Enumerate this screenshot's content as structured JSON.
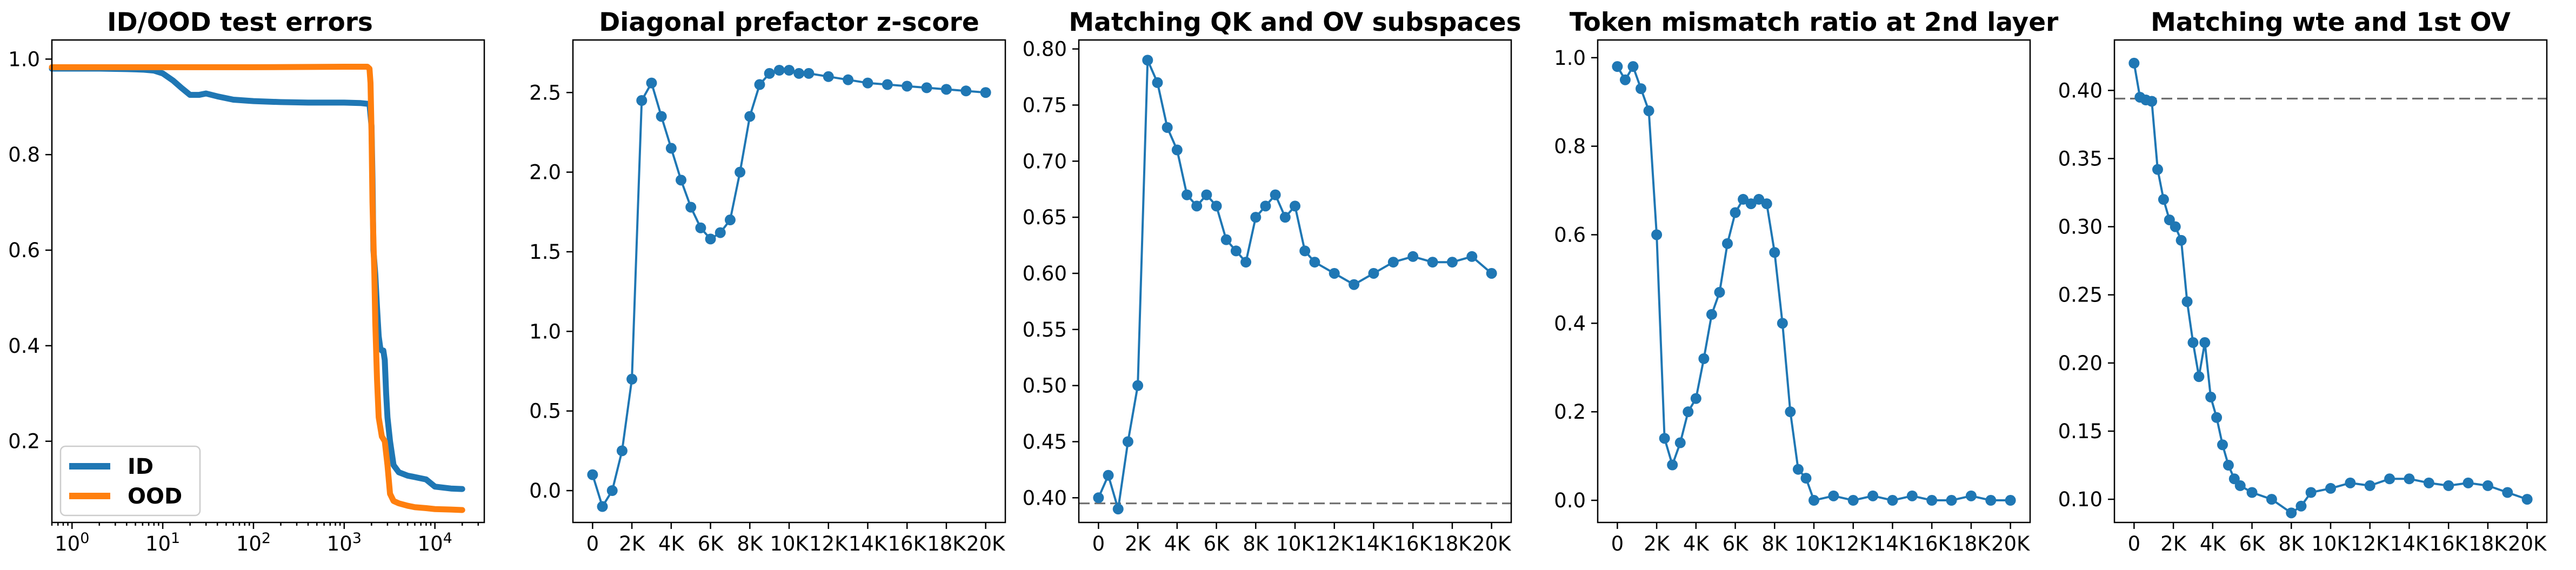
{
  "palette": {
    "id": "#1f77b4",
    "ood": "#ff7f0e",
    "reference": "#6e6e6e"
  },
  "chart_data": [
    {
      "type": "line",
      "title": "ID/OOD test errors",
      "xscale": "log",
      "xlim": [
        0.6,
        35000
      ],
      "ylim": [
        0.03,
        1.04
      ],
      "xticks": [
        {
          "value": 1,
          "label": "10",
          "exp": "0"
        },
        {
          "value": 10,
          "label": "10",
          "exp": "1"
        },
        {
          "value": 100,
          "label": "10",
          "exp": "2"
        },
        {
          "value": 1000,
          "label": "10",
          "exp": "3"
        },
        {
          "value": 10000,
          "label": "10",
          "exp": "4"
        }
      ],
      "yticks": [
        0.2,
        0.4,
        0.6,
        0.8,
        1.0
      ],
      "legend_position": "lower-left",
      "series": [
        {
          "name": "ID",
          "color_key": "id",
          "markers": false,
          "x": [
            0.6,
            2,
            4,
            6,
            8,
            10,
            13,
            16,
            20,
            25,
            30,
            40,
            60,
            100,
            200,
            400,
            700,
            1000,
            1500,
            1900,
            2000,
            2050,
            2100,
            2200,
            2300,
            2400,
            2500,
            2600,
            2700,
            2800,
            2900,
            3000,
            3200,
            3500,
            4000,
            5000,
            6000,
            8000,
            10000,
            15000,
            20000
          ],
          "y": [
            0.98,
            0.98,
            0.979,
            0.978,
            0.976,
            0.97,
            0.955,
            0.94,
            0.925,
            0.925,
            0.928,
            0.922,
            0.915,
            0.912,
            0.91,
            0.909,
            0.909,
            0.909,
            0.908,
            0.906,
            0.86,
            0.75,
            0.6,
            0.55,
            0.48,
            0.42,
            0.395,
            0.39,
            0.39,
            0.37,
            0.3,
            0.25,
            0.2,
            0.15,
            0.135,
            0.128,
            0.125,
            0.12,
            0.105,
            0.101,
            0.1
          ]
        },
        {
          "name": "OOD",
          "color_key": "ood",
          "markers": false,
          "x": [
            0.6,
            10,
            100,
            1000,
            1800,
            1900,
            1950,
            2000,
            2050,
            2100,
            2150,
            2200,
            2300,
            2400,
            2600,
            2800,
            3000,
            3200,
            3500,
            4000,
            5000,
            6000,
            8000,
            10000,
            15000,
            20000
          ],
          "y": [
            0.983,
            0.983,
            0.983,
            0.984,
            0.984,
            0.98,
            0.95,
            0.85,
            0.7,
            0.62,
            0.55,
            0.45,
            0.33,
            0.25,
            0.21,
            0.2,
            0.15,
            0.09,
            0.075,
            0.07,
            0.065,
            0.062,
            0.06,
            0.058,
            0.057,
            0.056
          ]
        }
      ]
    },
    {
      "type": "line",
      "title": "Diagonal prefactor z-score",
      "xlim": [
        -1000,
        21000
      ],
      "ylim": [
        -0.2,
        2.83
      ],
      "xticks": [
        {
          "value": 0,
          "label": "0"
        },
        {
          "value": 2000,
          "label": "2K"
        },
        {
          "value": 4000,
          "label": "4K"
        },
        {
          "value": 6000,
          "label": "6K"
        },
        {
          "value": 8000,
          "label": "8K"
        },
        {
          "value": 10000,
          "label": "10K"
        },
        {
          "value": 12000,
          "label": "12K"
        },
        {
          "value": 14000,
          "label": "14K"
        },
        {
          "value": 16000,
          "label": "16K"
        },
        {
          "value": 18000,
          "label": "18K"
        },
        {
          "value": 20000,
          "label": "20K"
        }
      ],
      "yticks": [
        0.0,
        0.5,
        1.0,
        1.5,
        2.0,
        2.5
      ],
      "ytick_decimals": 1,
      "series": [
        {
          "color_key": "id",
          "markers": true,
          "x": [
            0,
            500,
            1000,
            1500,
            2000,
            2500,
            3000,
            3500,
            4000,
            4500,
            5000,
            5500,
            6000,
            6500,
            7000,
            7500,
            8000,
            8500,
            9000,
            9500,
            10000,
            10500,
            11000,
            12000,
            13000,
            14000,
            15000,
            16000,
            17000,
            18000,
            19000,
            20000
          ],
          "y": [
            0.1,
            -0.1,
            0.0,
            0.25,
            0.7,
            2.45,
            2.56,
            2.35,
            2.15,
            1.95,
            1.78,
            1.65,
            1.58,
            1.62,
            1.7,
            2.0,
            2.35,
            2.55,
            2.62,
            2.64,
            2.64,
            2.62,
            2.62,
            2.6,
            2.58,
            2.56,
            2.55,
            2.54,
            2.53,
            2.52,
            2.51,
            2.5
          ]
        }
      ]
    },
    {
      "type": "line",
      "title": "Matching QK and OV subspaces",
      "xlim": [
        -1000,
        21000
      ],
      "ylim": [
        0.378,
        0.808
      ],
      "xticks": [
        {
          "value": 0,
          "label": "0"
        },
        {
          "value": 2000,
          "label": "2K"
        },
        {
          "value": 4000,
          "label": "4K"
        },
        {
          "value": 6000,
          "label": "6K"
        },
        {
          "value": 8000,
          "label": "8K"
        },
        {
          "value": 10000,
          "label": "10K"
        },
        {
          "value": 12000,
          "label": "12K"
        },
        {
          "value": 14000,
          "label": "14K"
        },
        {
          "value": 16000,
          "label": "16K"
        },
        {
          "value": 18000,
          "label": "18K"
        },
        {
          "value": 20000,
          "label": "20K"
        }
      ],
      "yticks": [
        0.4,
        0.45,
        0.5,
        0.55,
        0.6,
        0.65,
        0.7,
        0.75,
        0.8
      ],
      "ytick_decimals": 2,
      "reference_line": 0.395,
      "series": [
        {
          "color_key": "id",
          "markers": true,
          "x": [
            0,
            500,
            1000,
            1500,
            2000,
            2500,
            3000,
            3500,
            4000,
            4500,
            5000,
            5500,
            6000,
            6500,
            7000,
            7500,
            8000,
            8500,
            9000,
            9500,
            10000,
            10500,
            11000,
            12000,
            13000,
            14000,
            15000,
            16000,
            17000,
            18000,
            19000,
            20000
          ],
          "y": [
            0.4,
            0.42,
            0.39,
            0.45,
            0.5,
            0.79,
            0.77,
            0.73,
            0.71,
            0.67,
            0.66,
            0.67,
            0.66,
            0.63,
            0.62,
            0.61,
            0.65,
            0.66,
            0.67,
            0.65,
            0.66,
            0.62,
            0.61,
            0.6,
            0.59,
            0.6,
            0.61,
            0.615,
            0.61,
            0.61,
            0.615,
            0.6
          ]
        }
      ]
    },
    {
      "type": "line",
      "title": "Token mismatch ratio at 2nd layer",
      "xlim": [
        -1000,
        21000
      ],
      "ylim": [
        -0.05,
        1.04
      ],
      "xticks": [
        {
          "value": 0,
          "label": "0"
        },
        {
          "value": 2000,
          "label": "2K"
        },
        {
          "value": 4000,
          "label": "4K"
        },
        {
          "value": 6000,
          "label": "6K"
        },
        {
          "value": 8000,
          "label": "8K"
        },
        {
          "value": 10000,
          "label": "10K"
        },
        {
          "value": 12000,
          "label": "12K"
        },
        {
          "value": 14000,
          "label": "14K"
        },
        {
          "value": 16000,
          "label": "16K"
        },
        {
          "value": 18000,
          "label": "18K"
        },
        {
          "value": 20000,
          "label": "20K"
        }
      ],
      "yticks": [
        0.0,
        0.2,
        0.4,
        0.6,
        0.8,
        1.0
      ],
      "ytick_decimals": 1,
      "series": [
        {
          "color_key": "id",
          "markers": true,
          "x": [
            0,
            400,
            800,
            1200,
            1600,
            2000,
            2400,
            2800,
            3200,
            3600,
            4000,
            4400,
            4800,
            5200,
            5600,
            6000,
            6400,
            6800,
            7200,
            7600,
            8000,
            8400,
            8800,
            9200,
            9600,
            10000,
            11000,
            12000,
            13000,
            14000,
            15000,
            16000,
            17000,
            18000,
            19000,
            20000
          ],
          "y": [
            0.98,
            0.95,
            0.98,
            0.93,
            0.88,
            0.6,
            0.14,
            0.08,
            0.13,
            0.2,
            0.23,
            0.32,
            0.42,
            0.47,
            0.58,
            0.65,
            0.68,
            0.67,
            0.68,
            0.67,
            0.56,
            0.4,
            0.2,
            0.07,
            0.05,
            0.0,
            0.01,
            0.0,
            0.01,
            0.0,
            0.01,
            0.0,
            0.0,
            0.01,
            0.0,
            0.0
          ]
        }
      ]
    },
    {
      "type": "line",
      "title": "Matching wte and 1st OV",
      "xlim": [
        -1000,
        21000
      ],
      "ylim": [
        0.083,
        0.437
      ],
      "xticks": [
        {
          "value": 0,
          "label": "0"
        },
        {
          "value": 2000,
          "label": "2K"
        },
        {
          "value": 4000,
          "label": "4K"
        },
        {
          "value": 6000,
          "label": "6K"
        },
        {
          "value": 8000,
          "label": "8K"
        },
        {
          "value": 10000,
          "label": "10K"
        },
        {
          "value": 12000,
          "label": "12K"
        },
        {
          "value": 14000,
          "label": "14K"
        },
        {
          "value": 16000,
          "label": "16K"
        },
        {
          "value": 18000,
          "label": "18K"
        },
        {
          "value": 20000,
          "label": "20K"
        }
      ],
      "yticks": [
        0.1,
        0.15,
        0.2,
        0.25,
        0.3,
        0.35,
        0.4
      ],
      "ytick_decimals": 2,
      "reference_line": 0.394,
      "series": [
        {
          "color_key": "id",
          "markers": true,
          "x": [
            0,
            300,
            600,
            900,
            1200,
            1500,
            1800,
            2100,
            2400,
            2700,
            3000,
            3300,
            3600,
            3900,
            4200,
            4500,
            4800,
            5100,
            5400,
            6000,
            7000,
            8000,
            8500,
            9000,
            10000,
            11000,
            12000,
            13000,
            14000,
            15000,
            16000,
            17000,
            18000,
            19000,
            20000
          ],
          "y": [
            0.42,
            0.395,
            0.393,
            0.392,
            0.342,
            0.32,
            0.305,
            0.3,
            0.29,
            0.245,
            0.215,
            0.19,
            0.215,
            0.175,
            0.16,
            0.14,
            0.125,
            0.115,
            0.11,
            0.105,
            0.1,
            0.09,
            0.095,
            0.105,
            0.108,
            0.112,
            0.11,
            0.115,
            0.115,
            0.112,
            0.11,
            0.112,
            0.11,
            0.105,
            0.1
          ]
        }
      ]
    }
  ]
}
